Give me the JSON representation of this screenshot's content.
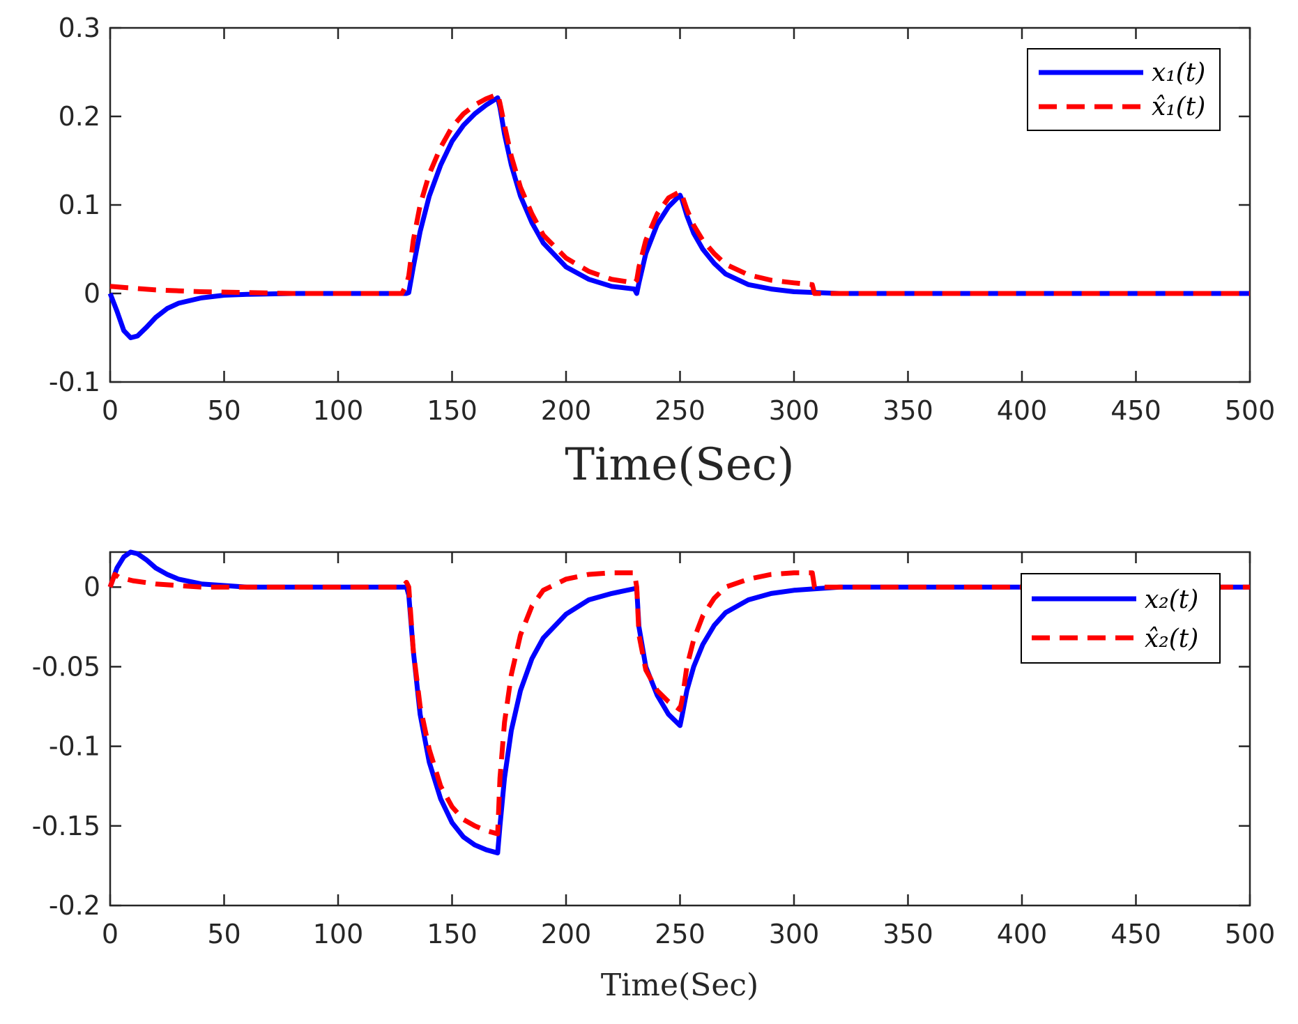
{
  "chart_data": [
    {
      "type": "line",
      "xlabel": "Time(Sec)",
      "xlim": [
        0,
        500
      ],
      "ylim": [
        -0.1,
        0.3
      ],
      "xticks": [
        "0",
        "50",
        "100",
        "150",
        "200",
        "250",
        "300",
        "350",
        "400",
        "450",
        "500"
      ],
      "yticks": [
        "-0.1",
        "0",
        "0.1",
        "0.2",
        "0.3"
      ],
      "legend_position": "top-right",
      "series": [
        {
          "name": "x1(t)",
          "legend_label": "x₁(t)",
          "color": "#0000ff",
          "style": "solid",
          "x": [
            0,
            3,
            6,
            9,
            12,
            16,
            20,
            25,
            30,
            40,
            50,
            60,
            80,
            100,
            130,
            131,
            133,
            136,
            140,
            145,
            150,
            155,
            160,
            165,
            170,
            171,
            173,
            176,
            180,
            185,
            190,
            200,
            210,
            220,
            230,
            231,
            232,
            235,
            240,
            245,
            250,
            251,
            253,
            256,
            260,
            265,
            270,
            280,
            290,
            300,
            310,
            320,
            350,
            400,
            450,
            500
          ],
          "y": [
            0.0,
            -0.02,
            -0.042,
            -0.05,
            -0.048,
            -0.038,
            -0.027,
            -0.017,
            -0.011,
            -0.005,
            -0.002,
            -0.001,
            0.0,
            0.0,
            0.0,
            0.001,
            0.03,
            0.07,
            0.11,
            0.145,
            0.172,
            0.19,
            0.203,
            0.213,
            0.221,
            0.21,
            0.18,
            0.145,
            0.11,
            0.08,
            0.057,
            0.03,
            0.016,
            0.008,
            0.005,
            0.0,
            0.012,
            0.045,
            0.078,
            0.098,
            0.111,
            0.105,
            0.088,
            0.068,
            0.05,
            0.034,
            0.022,
            0.01,
            0.005,
            0.002,
            0.001,
            0.0,
            0.0,
            0.0,
            0.0,
            0.0
          ]
        },
        {
          "name": "x1_hat(t)",
          "legend_label": "x̂₁(t)",
          "color": "#ff0000",
          "style": "dashed",
          "x": [
            0,
            10,
            20,
            30,
            40,
            60,
            80,
            100,
            128,
            130,
            131,
            133,
            136,
            140,
            145,
            150,
            155,
            160,
            165,
            170,
            171,
            173,
            176,
            180,
            185,
            190,
            200,
            210,
            220,
            230,
            231,
            232,
            235,
            240,
            245,
            250,
            251,
            253,
            256,
            260,
            265,
            270,
            280,
            290,
            300,
            308,
            309,
            320,
            350,
            400,
            450,
            500
          ],
          "y": [
            0.008,
            0.006,
            0.004,
            0.003,
            0.002,
            0.001,
            0.0,
            0.0,
            0.0,
            0.01,
            0.02,
            0.06,
            0.1,
            0.135,
            0.165,
            0.188,
            0.203,
            0.213,
            0.22,
            0.225,
            0.215,
            0.19,
            0.155,
            0.12,
            0.09,
            0.066,
            0.04,
            0.025,
            0.016,
            0.012,
            0.015,
            0.03,
            0.06,
            0.09,
            0.108,
            0.115,
            0.11,
            0.095,
            0.077,
            0.06,
            0.045,
            0.033,
            0.021,
            0.015,
            0.012,
            0.01,
            0.0,
            0.0,
            0.0,
            0.0,
            0.0,
            0.0
          ]
        }
      ]
    },
    {
      "type": "line",
      "xlabel": "Time(Sec)",
      "xlim": [
        0,
        500
      ],
      "ylim": [
        -0.2,
        0.022
      ],
      "xticks": [
        "0",
        "50",
        "100",
        "150",
        "200",
        "250",
        "300",
        "350",
        "400",
        "450",
        "500"
      ],
      "yticks": [
        "-0.2",
        "-0.15",
        "-0.1",
        "-0.05",
        "0"
      ],
      "legend_position": "top-right",
      "series": [
        {
          "name": "x2(t)",
          "legend_label": "x₂(t)",
          "color": "#0000ff",
          "style": "solid",
          "x": [
            0,
            3,
            6,
            9,
            12,
            16,
            20,
            25,
            30,
            40,
            50,
            60,
            80,
            100,
            130,
            131,
            133,
            136,
            140,
            145,
            150,
            155,
            160,
            165,
            170,
            171,
            173,
            176,
            180,
            185,
            190,
            200,
            210,
            220,
            230,
            231,
            232,
            235,
            240,
            245,
            250,
            251,
            253,
            256,
            260,
            265,
            270,
            280,
            290,
            300,
            310,
            320,
            350,
            400,
            450,
            500
          ],
          "y": [
            0.0,
            0.012,
            0.019,
            0.022,
            0.021,
            0.017,
            0.012,
            0.008,
            0.005,
            0.002,
            0.001,
            0.0,
            0.0,
            0.0,
            0.0,
            -0.005,
            -0.04,
            -0.08,
            -0.11,
            -0.133,
            -0.148,
            -0.157,
            -0.162,
            -0.165,
            -0.167,
            -0.15,
            -0.12,
            -0.09,
            -0.065,
            -0.045,
            -0.032,
            -0.017,
            -0.008,
            -0.004,
            -0.001,
            -0.001,
            -0.025,
            -0.05,
            -0.068,
            -0.08,
            -0.087,
            -0.08,
            -0.065,
            -0.05,
            -0.036,
            -0.024,
            -0.016,
            -0.008,
            -0.004,
            -0.002,
            -0.001,
            0.0,
            0.0,
            0.0,
            0.0,
            0.0
          ]
        },
        {
          "name": "x2_hat(t)",
          "legend_label": "x̂₂(t)",
          "color": "#ff0000",
          "style": "dashed",
          "x": [
            0,
            2,
            4,
            10,
            20,
            30,
            40,
            60,
            80,
            100,
            128,
            130,
            131,
            133,
            136,
            140,
            145,
            150,
            155,
            160,
            165,
            170,
            171,
            173,
            176,
            180,
            185,
            190,
            200,
            210,
            220,
            230,
            231,
            232,
            235,
            240,
            245,
            250,
            251,
            253,
            256,
            260,
            265,
            270,
            280,
            290,
            300,
            308,
            309,
            320,
            350,
            400,
            450,
            500
          ],
          "y": [
            0.0,
            0.008,
            0.006,
            0.004,
            0.002,
            0.001,
            0.0,
            0.0,
            0.0,
            0.0,
            0.0,
            0.003,
            0.0,
            -0.04,
            -0.075,
            -0.102,
            -0.125,
            -0.138,
            -0.146,
            -0.15,
            -0.153,
            -0.155,
            -0.12,
            -0.085,
            -0.055,
            -0.03,
            -0.012,
            -0.002,
            0.005,
            0.008,
            0.009,
            0.009,
            0.0,
            -0.03,
            -0.052,
            -0.065,
            -0.072,
            -0.077,
            -0.07,
            -0.05,
            -0.033,
            -0.018,
            -0.007,
            0.0,
            0.005,
            0.008,
            0.009,
            0.009,
            0.0,
            0.0,
            0.0,
            0.0,
            0.0,
            0.0
          ]
        }
      ]
    }
  ]
}
